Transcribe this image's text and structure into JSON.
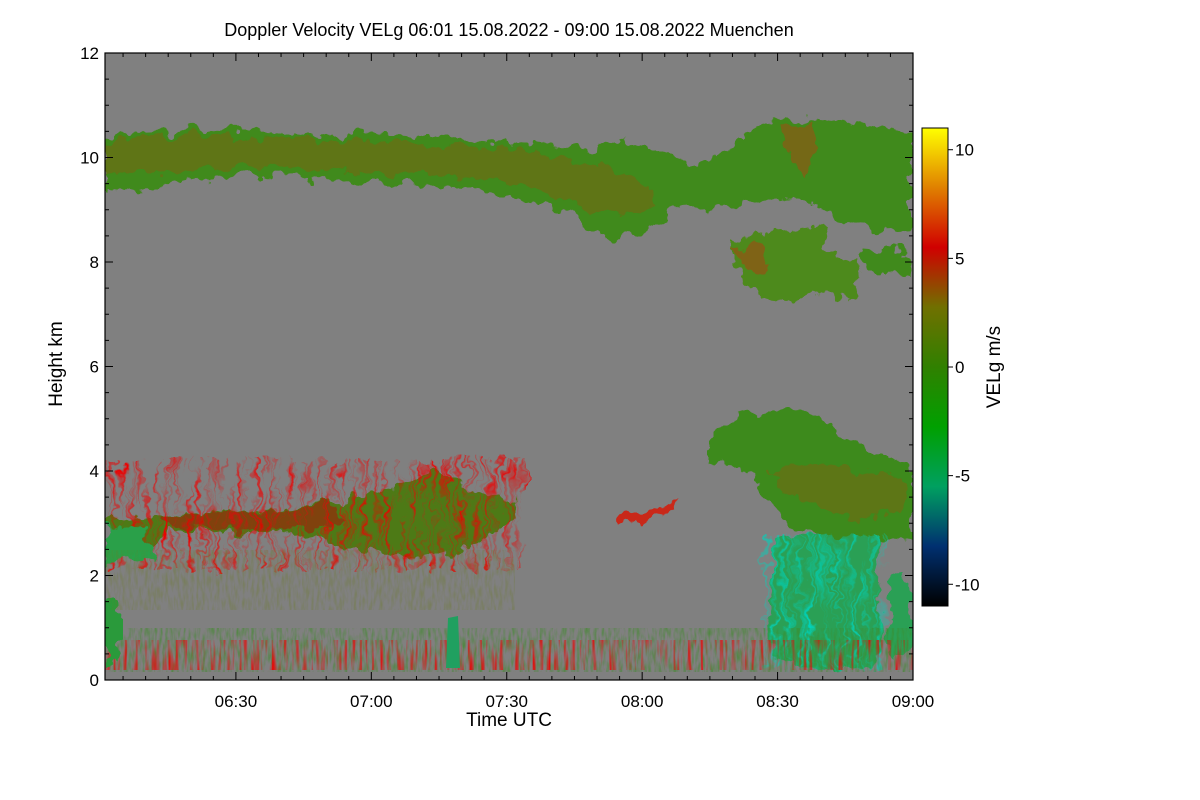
{
  "chart_data": {
    "type": "heatmap",
    "title": "Doppler Velocity VELg   06:01 15.08.2022 - 09:00 15.08.2022 Muenchen",
    "xlabel": "Time UTC",
    "ylabel": "Height km",
    "xlim": [
      "06:01",
      "09:00"
    ],
    "ylim": [
      0,
      12
    ],
    "x_ticks": [
      "06:30",
      "07:00",
      "07:30",
      "08:00",
      "08:30",
      "09:00"
    ],
    "x_tick_minutes": [
      30,
      60,
      90,
      120,
      150,
      180
    ],
    "y_ticks": [
      0,
      2,
      4,
      6,
      8,
      10,
      12
    ],
    "background_value_color": "#808080",
    "colorbar": {
      "label": "VELg m/s",
      "range": [
        -11,
        11
      ],
      "ticks": [
        -10,
        -5,
        0,
        5,
        10
      ],
      "colors": [
        "#000000",
        "#003070",
        "#00a060",
        "#00a000",
        "#308000",
        "#707000",
        "#d00000",
        "#e08000",
        "#ffff00"
      ]
    },
    "features": [
      {
        "name": "cirrus-layer-upper",
        "t_start_min": 0,
        "t_end_min": 180,
        "h_bottom_km": 9.4,
        "h_top_km": 10.6,
        "velocity_ms": -0.5
      },
      {
        "name": "cirrus-patch-late",
        "t_start_min": 140,
        "t_end_min": 168,
        "h_bottom_km": 7.3,
        "h_top_km": 8.8,
        "velocity_ms": 0.5
      },
      {
        "name": "mid-layer-cloud",
        "t_start_min": 0,
        "t_end_min": 92,
        "h_bottom_km": 2.3,
        "h_top_km": 4.1,
        "velocity_ms": 2.5
      },
      {
        "name": "convective-cloud",
        "t_start_min": 135,
        "t_end_min": 180,
        "h_bottom_km": 0.1,
        "h_top_km": 5.1,
        "velocity_ms": -2.0
      },
      {
        "name": "boundary-layer",
        "t_start_min": 0,
        "t_end_min": 180,
        "h_bottom_km": 0.0,
        "h_top_km": 0.8,
        "velocity_ms": 0.0
      }
    ]
  }
}
